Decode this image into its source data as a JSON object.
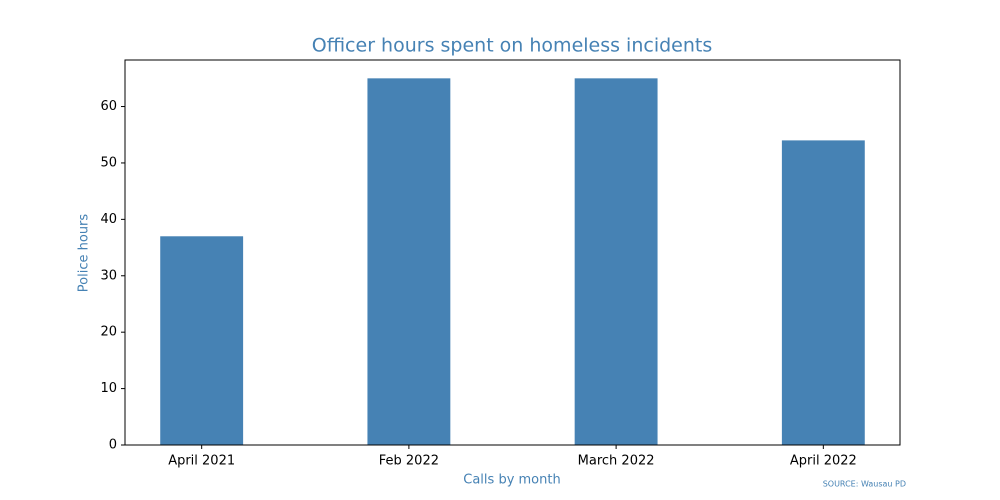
{
  "chart_data": {
    "type": "bar",
    "title": "Officer hours spent on homeless incidents",
    "x_label": "Calls by month",
    "y_label": "Police hours",
    "source": "SOURCE: Wausau PD",
    "categories": [
      "April 2021",
      "Feb 2022",
      "March 2022",
      "April 2022"
    ],
    "values": [
      37,
      65,
      65,
      54
    ],
    "color": "#4682b4",
    "ylim": [
      0,
      68.25
    ],
    "yticks": [
      0,
      10,
      20,
      30,
      40,
      50,
      60
    ],
    "grid": false
  }
}
